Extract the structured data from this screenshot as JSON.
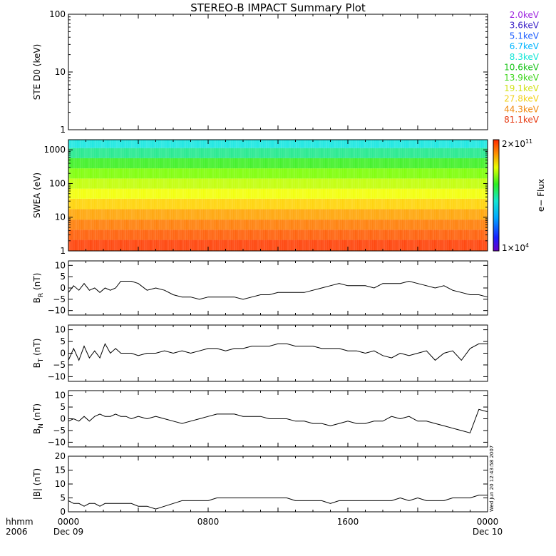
{
  "title": "STEREO-B IMPACT Summary Plot",
  "time_axis": {
    "corner_labels": [
      "hhmm",
      "2006"
    ],
    "ticks": [
      {
        "hour": 0,
        "label": "0000",
        "sublabel": "Dec 09"
      },
      {
        "hour": 8,
        "label": "0800",
        "sublabel": ""
      },
      {
        "hour": 16,
        "label": "1600",
        "sublabel": ""
      },
      {
        "hour": 24,
        "label": "0000",
        "sublabel": "Dec 10"
      }
    ],
    "range_hours": [
      0,
      24
    ]
  },
  "ste_legend": [
    {
      "label": "2.0keV",
      "color": "#9e26e0"
    },
    {
      "label": "3.6keV",
      "color": "#3a1fc8"
    },
    {
      "label": "5.1keV",
      "color": "#1f5fff"
    },
    {
      "label": "6.7keV",
      "color": "#00b4ff"
    },
    {
      "label": "8.3keV",
      "color": "#13e6d6"
    },
    {
      "label": "10.6keV",
      "color": "#18c418"
    },
    {
      "label": "13.9keV",
      "color": "#3ed61c"
    },
    {
      "label": "19.1keV",
      "color": "#d2e21a"
    },
    {
      "label": "27.8keV",
      "color": "#f2d21a"
    },
    {
      "label": "44.3keV",
      "color": "#f08a10"
    },
    {
      "label": "81.1keV",
      "color": "#e63a12"
    }
  ],
  "colorbar": {
    "label": "e− Flux",
    "max_label": {
      "mantissa": "2×10",
      "exp": "11"
    },
    "min_label": {
      "mantissa": "1×10",
      "exp": "4"
    }
  },
  "side_timestamp": "Wed Jun 20 12:43:58 2007",
  "chart_data": [
    {
      "panel": "ste",
      "type": "line",
      "ylabel": "STE D0 (keV)",
      "yscale": "log",
      "ylim": [
        1,
        100
      ],
      "yticks": [
        1,
        10,
        100
      ],
      "ytick_labels": [
        "1",
        "10",
        "100"
      ],
      "series": []
    },
    {
      "panel": "swea",
      "type": "heatmap",
      "ylabel": "SWEA (eV)",
      "yscale": "log",
      "ylim": [
        1,
        2000
      ],
      "yticks": [
        1,
        10,
        100,
        1000
      ],
      "ytick_labels": [
        "1",
        "10",
        "100",
        "1000"
      ],
      "z_range": [
        10000,
        200000000000
      ],
      "energy_bands_eV": [
        1.5,
        3,
        6,
        12,
        25,
        50,
        100,
        200,
        400,
        800,
        1600
      ],
      "band_colors": [
        "#ff3c00",
        "#ff5a00",
        "#ff7a00",
        "#ffa200",
        "#ffd200",
        "#f2ff00",
        "#c0ff00",
        "#7aff00",
        "#3af020",
        "#1de88a",
        "#14e6e0"
      ]
    },
    {
      "panel": "br",
      "type": "line",
      "ylabel": "B",
      "ylabel_sub": "R",
      "ylabel_unit": " (nT)",
      "ylim": [
        -12,
        12
      ],
      "yticks": [
        -10,
        -5,
        0,
        5,
        10
      ],
      "ytick_labels": [
        "−10",
        "−5",
        "0",
        "5",
        "10"
      ],
      "series": [
        {
          "x": [
            0,
            0.3,
            0.6,
            0.9,
            1.2,
            1.5,
            1.8,
            2.1,
            2.4,
            2.7,
            3,
            3.3,
            3.6,
            4,
            4.5,
            5,
            5.5,
            6,
            6.5,
            7,
            7.5,
            8,
            8.5,
            9,
            9.5,
            10,
            10.5,
            11,
            11.5,
            12,
            12.5,
            13,
            13.5,
            14,
            14.5,
            15,
            15.5,
            16,
            16.5,
            17,
            17.5,
            18,
            18.5,
            19,
            19.5,
            20,
            20.5,
            21,
            21.5,
            22,
            22.5,
            23,
            23.5,
            24
          ],
          "y": [
            -2,
            1,
            -1,
            2,
            -1,
            0,
            -2,
            0,
            -1,
            0,
            3,
            3,
            3,
            2,
            -1,
            0,
            -1,
            -3,
            -4,
            -4,
            -5,
            -4,
            -4,
            -4,
            -4,
            -5,
            -4,
            -3,
            -3,
            -2,
            -2,
            -2,
            -2,
            -1,
            0,
            1,
            2,
            1,
            1,
            1,
            0,
            2,
            2,
            2,
            3,
            2,
            1,
            0,
            1,
            -1,
            -2,
            -3,
            -3,
            -4
          ]
        }
      ]
    },
    {
      "panel": "bt",
      "type": "line",
      "ylabel": "B",
      "ylabel_sub": "T",
      "ylabel_unit": " (nT)",
      "ylim": [
        -12,
        12
      ],
      "yticks": [
        -10,
        -5,
        0,
        5,
        10
      ],
      "ytick_labels": [
        "−10",
        "−5",
        "0",
        "5",
        "10"
      ],
      "series": [
        {
          "x": [
            0,
            0.3,
            0.6,
            0.9,
            1.2,
            1.5,
            1.8,
            2.1,
            2.4,
            2.7,
            3,
            3.3,
            3.6,
            4,
            4.5,
            5,
            5.5,
            6,
            6.5,
            7,
            7.5,
            8,
            8.5,
            9,
            9.5,
            10,
            10.5,
            11,
            11.5,
            12,
            12.5,
            13,
            13.5,
            14,
            14.5,
            15,
            15.5,
            16,
            16.5,
            17,
            17.5,
            18,
            18.5,
            19,
            19.5,
            20,
            20.5,
            21,
            21.5,
            22,
            22.5,
            23,
            23.5,
            24
          ],
          "y": [
            -3,
            2,
            -3,
            3,
            -2,
            1,
            -2,
            4,
            0,
            2,
            0,
            0,
            0,
            -1,
            0,
            0,
            1,
            0,
            1,
            0,
            1,
            2,
            2,
            1,
            2,
            2,
            3,
            3,
            3,
            4,
            4,
            3,
            3,
            3,
            2,
            2,
            2,
            1,
            1,
            0,
            1,
            -1,
            -2,
            0,
            -1,
            0,
            1,
            -3,
            0,
            1,
            -3,
            2,
            4,
            4
          ]
        }
      ]
    },
    {
      "panel": "bn",
      "type": "line",
      "ylabel": "B",
      "ylabel_sub": "N",
      "ylabel_unit": " (nT)",
      "ylim": [
        -12,
        12
      ],
      "yticks": [
        -10,
        -5,
        0,
        5,
        10
      ],
      "ytick_labels": [
        "−10",
        "−5",
        "0",
        "5",
        "10"
      ],
      "series": [
        {
          "x": [
            0,
            0.3,
            0.6,
            0.9,
            1.2,
            1.5,
            1.8,
            2.1,
            2.4,
            2.7,
            3,
            3.3,
            3.6,
            4,
            4.5,
            5,
            5.5,
            6,
            6.5,
            7,
            7.5,
            8,
            8.5,
            9,
            9.5,
            10,
            10.5,
            11,
            11.5,
            12,
            12.5,
            13,
            13.5,
            14,
            14.5,
            15,
            15.5,
            16,
            16.5,
            17,
            17.5,
            18,
            18.5,
            19,
            19.5,
            20,
            20.5,
            21,
            21.5,
            22,
            22.5,
            23,
            23.5,
            24
          ],
          "y": [
            -1,
            0,
            -1,
            1,
            -1,
            1,
            2,
            1,
            1,
            2,
            1,
            1,
            0,
            1,
            0,
            1,
            0,
            -1,
            -2,
            -1,
            0,
            1,
            2,
            2,
            2,
            1,
            1,
            1,
            0,
            0,
            0,
            -1,
            -1,
            -2,
            -2,
            -3,
            -2,
            -1,
            -2,
            -2,
            -1,
            -1,
            1,
            0,
            1,
            -1,
            -1,
            -2,
            -3,
            -4,
            -5,
            -6,
            4,
            3
          ]
        }
      ]
    },
    {
      "panel": "bmag",
      "type": "line",
      "ylabel": "|B| (nT)",
      "ylim": [
        0,
        20
      ],
      "yticks": [
        0,
        5,
        10,
        15,
        20
      ],
      "ytick_labels": [
        "0",
        "5",
        "10",
        "15",
        "20"
      ],
      "series": [
        {
          "x": [
            0,
            0.3,
            0.6,
            0.9,
            1.2,
            1.5,
            1.8,
            2.1,
            2.4,
            2.7,
            3,
            3.3,
            3.6,
            4,
            4.5,
            5,
            5.5,
            6,
            6.5,
            7,
            7.5,
            8,
            8.5,
            9,
            9.5,
            10,
            10.5,
            11,
            11.5,
            12,
            12.5,
            13,
            13.5,
            14,
            14.5,
            15,
            15.5,
            16,
            16.5,
            17,
            17.5,
            18,
            18.5,
            19,
            19.5,
            20,
            20.5,
            21,
            21.5,
            22,
            22.5,
            23,
            23.5,
            24
          ],
          "y": [
            4,
            3,
            3,
            2,
            3,
            3,
            2,
            3,
            3,
            3,
            3,
            3,
            3,
            2,
            2,
            1,
            2,
            3,
            4,
            4,
            4,
            4,
            5,
            5,
            5,
            5,
            5,
            5,
            5,
            5,
            5,
            4,
            4,
            4,
            4,
            3,
            4,
            4,
            4,
            4,
            4,
            4,
            4,
            5,
            4,
            5,
            4,
            4,
            4,
            5,
            5,
            5,
            6,
            6
          ]
        }
      ]
    }
  ]
}
